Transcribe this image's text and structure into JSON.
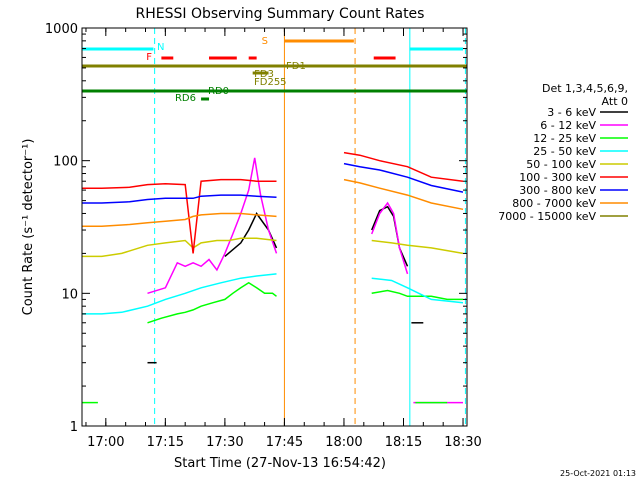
{
  "chart_data": {
    "type": "line",
    "title": "RHESSI Observing Summary Count Rates",
    "xlabel": "Start Time (27-Nov-13 16:54:42)",
    "ylabel": "Count Rate (s⁻¹ detector⁻¹)",
    "yscale": "log",
    "xlim_minutes_after_1654": [
      0,
      97
    ],
    "ylim": [
      1,
      1000
    ],
    "x_ticks": [
      {
        "label": "17:00",
        "min": 6
      },
      {
        "label": "17:15",
        "min": 21
      },
      {
        "label": "17:30",
        "min": 36
      },
      {
        "label": "17:45",
        "min": 51
      },
      {
        "label": "18:00",
        "min": 66
      },
      {
        "label": "18:15",
        "min": 81
      },
      {
        "label": "18:30",
        "min": 96
      }
    ],
    "y_ticks": [
      {
        "label": "1",
        "value": 1
      },
      {
        "label": "10",
        "value": 10
      },
      {
        "label": "100",
        "value": 100
      },
      {
        "label": "1000",
        "value": 1000
      }
    ],
    "legend_header": [
      "Det 1,3,4,5,6,9,",
      "Att 0"
    ],
    "legend_placement": "right",
    "series": [
      {
        "name": "3 - 6 keV",
        "color": "#000000",
        "points": [
          [
            16.5,
            3
          ],
          [
            18.8,
            3
          ],
          [
            null,
            null
          ],
          [
            36,
            19
          ],
          [
            40,
            24
          ],
          [
            42,
            30
          ],
          [
            44,
            40
          ],
          [
            47,
            30
          ],
          [
            49,
            22
          ],
          [
            null,
            null
          ],
          [
            73,
            30
          ],
          [
            75,
            42
          ],
          [
            77,
            45
          ],
          [
            78.5,
            38
          ],
          [
            80,
            22
          ],
          [
            82,
            16
          ],
          [
            null,
            null
          ],
          [
            83,
            6
          ],
          [
            86,
            6
          ]
        ]
      },
      {
        "name": "6 - 12 keV",
        "color": "#ff00ff",
        "points": [
          [
            16.5,
            10
          ],
          [
            21,
            11
          ],
          [
            24,
            17
          ],
          [
            26,
            16
          ],
          [
            28,
            17
          ],
          [
            30,
            16
          ],
          [
            32,
            18
          ],
          [
            34,
            15
          ],
          [
            36,
            20
          ],
          [
            38,
            28
          ],
          [
            40,
            40
          ],
          [
            42,
            60
          ],
          [
            43.5,
            105
          ],
          [
            45,
            55
          ],
          [
            47,
            30
          ],
          [
            49,
            20
          ],
          [
            null,
            null
          ],
          [
            73,
            28
          ],
          [
            75,
            40
          ],
          [
            77,
            48
          ],
          [
            78.5,
            40
          ],
          [
            80,
            22
          ],
          [
            82,
            14
          ],
          [
            null,
            null
          ],
          [
            83.5,
            1.5
          ],
          [
            96,
            1.5
          ]
        ]
      },
      {
        "name": "12 - 25 keV",
        "color": "#00ff00",
        "points": [
          [
            0,
            1.5
          ],
          [
            4,
            1.5
          ],
          [
            null,
            null
          ],
          [
            16.5,
            6
          ],
          [
            20,
            6.5
          ],
          [
            24,
            7
          ],
          [
            26,
            7.2
          ],
          [
            28,
            7.5
          ],
          [
            30,
            8
          ],
          [
            33,
            8.5
          ],
          [
            36,
            9
          ],
          [
            38,
            10
          ],
          [
            40,
            11
          ],
          [
            42,
            12
          ],
          [
            44,
            11
          ],
          [
            46,
            10
          ],
          [
            48,
            10
          ],
          [
            49,
            9.5
          ],
          [
            null,
            null
          ],
          [
            73,
            10
          ],
          [
            77,
            10.5
          ],
          [
            80,
            10
          ],
          [
            82,
            9.5
          ],
          [
            84,
            9.5
          ],
          [
            88,
            9.5
          ],
          [
            92,
            9
          ],
          [
            96,
            9
          ],
          [
            null,
            null
          ],
          [
            84,
            1.5
          ],
          [
            92,
            1.5
          ]
        ]
      },
      {
        "name": "25 - 50 keV",
        "color": "#00ffff",
        "points": [
          [
            0,
            7
          ],
          [
            5,
            7
          ],
          [
            10,
            7.2
          ],
          [
            16.5,
            8
          ],
          [
            21,
            9
          ],
          [
            26,
            10
          ],
          [
            30,
            11
          ],
          [
            35,
            12
          ],
          [
            40,
            13
          ],
          [
            44,
            13.5
          ],
          [
            49,
            14
          ],
          [
            null,
            null
          ],
          [
            73,
            13
          ],
          [
            78,
            12.5
          ],
          [
            82,
            11
          ],
          [
            88,
            9
          ],
          [
            96,
            8.5
          ]
        ]
      },
      {
        "name": "50 - 100 keV",
        "color": "#cccc00",
        "points": [
          [
            0,
            19
          ],
          [
            5,
            19
          ],
          [
            10,
            20
          ],
          [
            16.5,
            23
          ],
          [
            21,
            24
          ],
          [
            26,
            25
          ],
          [
            28,
            22
          ],
          [
            30,
            24
          ],
          [
            34,
            25
          ],
          [
            37,
            25
          ],
          [
            40,
            26
          ],
          [
            44,
            26
          ],
          [
            49,
            25
          ],
          [
            null,
            null
          ],
          [
            73,
            25
          ],
          [
            78,
            24
          ],
          [
            82,
            23
          ],
          [
            88,
            22
          ],
          [
            92,
            21
          ],
          [
            96,
            20
          ]
        ]
      },
      {
        "name": "100 - 300 keV",
        "color": "#ff0000",
        "points": [
          [
            0,
            62
          ],
          [
            5,
            62
          ],
          [
            12,
            63
          ],
          [
            16.5,
            66
          ],
          [
            21,
            67
          ],
          [
            26,
            66
          ],
          [
            28,
            20
          ],
          [
            30,
            70
          ],
          [
            35,
            72
          ],
          [
            40,
            72
          ],
          [
            44,
            70
          ],
          [
            49,
            70
          ],
          [
            null,
            null
          ],
          [
            66,
            115
          ],
          [
            70,
            110
          ],
          [
            75,
            100
          ],
          [
            82,
            90
          ],
          [
            88,
            75
          ],
          [
            96,
            70
          ]
        ]
      },
      {
        "name": "300 - 800 keV",
        "color": "#0000ff",
        "points": [
          [
            0,
            48
          ],
          [
            5,
            48
          ],
          [
            12,
            49
          ],
          [
            16.5,
            51
          ],
          [
            21,
            52
          ],
          [
            26,
            52
          ],
          [
            28,
            52
          ],
          [
            30,
            54
          ],
          [
            35,
            55
          ],
          [
            40,
            55
          ],
          [
            44,
            54
          ],
          [
            49,
            53
          ],
          [
            null,
            null
          ],
          [
            66,
            95
          ],
          [
            70,
            90
          ],
          [
            75,
            85
          ],
          [
            82,
            75
          ],
          [
            88,
            65
          ],
          [
            96,
            58
          ]
        ]
      },
      {
        "name": "800 - 7000 keV",
        "color": "#ff8c00",
        "points": [
          [
            0,
            32
          ],
          [
            5,
            32
          ],
          [
            12,
            33
          ],
          [
            16.5,
            34
          ],
          [
            21,
            35
          ],
          [
            26,
            36
          ],
          [
            28,
            38
          ],
          [
            30,
            39
          ],
          [
            35,
            40
          ],
          [
            40,
            40
          ],
          [
            44,
            39
          ],
          [
            49,
            38
          ],
          [
            null,
            null
          ],
          [
            66,
            72
          ],
          [
            70,
            68
          ],
          [
            75,
            62
          ],
          [
            82,
            55
          ],
          [
            88,
            48
          ],
          [
            96,
            43
          ]
        ]
      }
    ],
    "series_extra": [
      {
        "name": "7000 - 15000 keV",
        "color": "#808000"
      }
    ],
    "flag_bars": [
      {
        "label": "N",
        "color": "#00ffff",
        "segments": [
          [
            0,
            18
          ],
          [
            82.5,
            96
          ]
        ]
      },
      {
        "label": "F",
        "color": "#ff0000",
        "segments": [
          [
            20,
            23
          ],
          [
            32,
            39
          ],
          [
            42,
            44
          ],
          [
            73.5,
            79
          ]
        ]
      },
      {
        "label": "S",
        "color": "#ff8c00",
        "segments": [
          [
            51,
            68.5
          ]
        ]
      },
      {
        "label": "FD1",
        "color": "#808000",
        "segments": [
          [
            0,
            97
          ]
        ]
      },
      {
        "label": "FD3",
        "color": "#808000",
        "segments": [
          [
            43,
            47
          ]
        ]
      },
      {
        "label": "FD255",
        "color": "#808000",
        "segments": []
      },
      {
        "label": "RD0",
        "color": "#008000",
        "segments": [
          [
            0,
            97
          ]
        ]
      },
      {
        "label": "RD6",
        "color": "#008000",
        "segments": [
          [
            30,
            32
          ]
        ]
      }
    ],
    "vlines": [
      {
        "min": 0,
        "color": "#00ffff",
        "style": "solid"
      },
      {
        "min": 18.3,
        "color": "#00ffff",
        "style": "dashed"
      },
      {
        "min": 51,
        "color": "#ff8c00",
        "style": "solid"
      },
      {
        "min": 68.8,
        "color": "#ff8c00",
        "style": "dashed"
      },
      {
        "min": 82.6,
        "color": "#00ffff",
        "style": "solid"
      },
      {
        "min": 96.6,
        "color": "#00ffff",
        "style": "dashed"
      }
    ],
    "timestamp": "25-Oct-2021 01:13"
  }
}
